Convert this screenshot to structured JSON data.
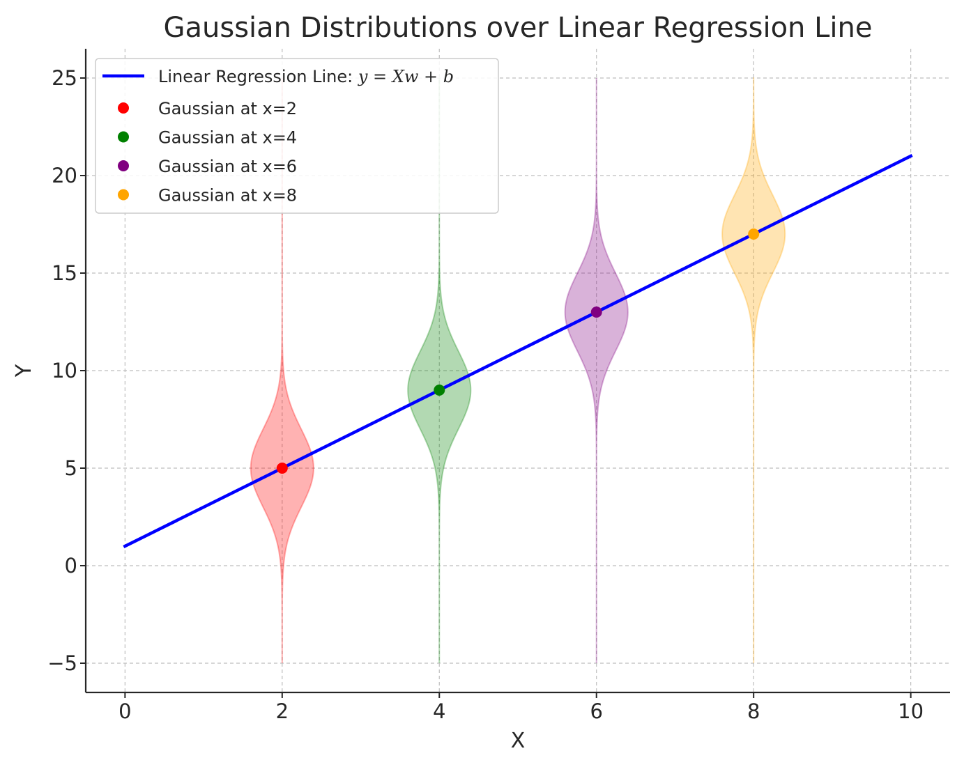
{
  "chart_data": {
    "type": "line",
    "title": "Gaussian Distributions over Linear Regression Line",
    "xlabel": "X",
    "ylabel": "Y",
    "xlim": [
      -0.5,
      10.5
    ],
    "ylim": [
      -6.5,
      26.5
    ],
    "x_ticks": [
      0,
      2,
      4,
      6,
      8,
      10
    ],
    "x_tick_labels": [
      "0",
      "2",
      "4",
      "6",
      "8",
      "10"
    ],
    "y_ticks": [
      -5,
      0,
      5,
      10,
      15,
      20,
      25
    ],
    "y_tick_labels": [
      "−5",
      "0",
      "5",
      "10",
      "15",
      "20",
      "25"
    ],
    "grid": true,
    "legend_position": "top-left",
    "regression_line": {
      "name": "Linear Regression Line: y = Xw + b",
      "name_prefix": "Linear Regression Line: ",
      "name_math": "y = Xw + b",
      "color": "#0000ff",
      "x": [
        0,
        10
      ],
      "y": [
        1,
        21
      ]
    },
    "series": [
      {
        "name": "Gaussian at x=2",
        "color": "#ff0000",
        "x": 2,
        "mean": 5,
        "sigma": 2,
        "y_range": [
          -5,
          25
        ]
      },
      {
        "name": "Gaussian at x=4",
        "color": "#008000",
        "x": 4,
        "mean": 9,
        "sigma": 2,
        "y_range": [
          -5,
          25
        ]
      },
      {
        "name": "Gaussian at x=6",
        "color": "#800080",
        "x": 6,
        "mean": 13,
        "sigma": 2,
        "y_range": [
          -5,
          25
        ]
      },
      {
        "name": "Gaussian at x=8",
        "color": "#ffa500",
        "x": 8,
        "mean": 17,
        "sigma": 2,
        "y_range": [
          -5,
          25
        ]
      }
    ]
  }
}
